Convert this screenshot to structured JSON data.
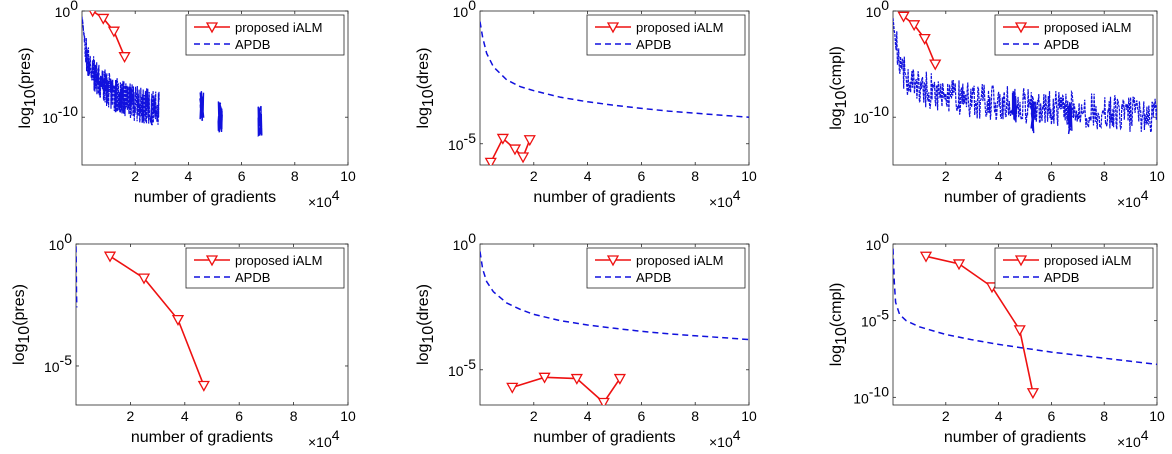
{
  "chart_data": [
    {
      "type": "line",
      "panel": "a",
      "xlabel": "number of gradients",
      "xmult": "×10",
      "xmult_exp": "4",
      "ylabel_prefix": "log",
      "ylabel_sub": "10",
      "ylabel_suffix": "(pres)",
      "xlim": [
        0,
        10
      ],
      "xticks": [
        "2",
        "4",
        "6",
        "8",
        "10"
      ],
      "ylim": [
        -14.5,
        0
      ],
      "yscale": "log",
      "yticks": [
        {
          "exp": 0,
          "label": "10",
          "sup": "0"
        },
        {
          "exp": -10,
          "label": "10",
          "sup": "-10"
        }
      ],
      "legend": {
        "position": "top-right",
        "entries": [
          "proposed iALM",
          "APDB"
        ]
      },
      "series": [
        {
          "name": "proposed iALM",
          "color": "#ee1111",
          "style": "solid",
          "marker": "triangle-down",
          "x": [
            0.4,
            0.8,
            1.2,
            1.6
          ],
          "y": [
            0,
            -0.7,
            -1.9,
            -4.3
          ]
        },
        {
          "name": "APDB",
          "color": "#1111dd",
          "style": "noisy",
          "noise": "pres",
          "x": [
            0.0,
            0.05,
            0.2,
            0.5,
            1.0,
            1.5,
            2.0,
            2.5,
            2.9
          ],
          "y": [
            -0.3,
            -2.0,
            -4.5,
            -6.2,
            -7.5,
            -8.2,
            -8.7,
            -9.0,
            -9.2
          ],
          "clusters": [
            {
              "x": 4.5,
              "y": -9.0
            },
            {
              "x": 5.2,
              "y": -10.0
            },
            {
              "x": 6.7,
              "y": -10.3
            }
          ]
        }
      ]
    },
    {
      "type": "line",
      "panel": "b",
      "xlabel": "number of gradients",
      "xmult": "×10",
      "xmult_exp": "4",
      "ylabel_prefix": "log",
      "ylabel_sub": "10",
      "ylabel_suffix": "(dres)",
      "xlim": [
        0,
        10
      ],
      "xticks": [
        "2",
        "4",
        "6",
        "8",
        "10"
      ],
      "ylim": [
        -5.8,
        0
      ],
      "yscale": "log",
      "yticks": [
        {
          "exp": 0,
          "label": "10",
          "sup": "0"
        },
        {
          "exp": -5,
          "label": "10",
          "sup": "-5"
        }
      ],
      "legend": {
        "position": "top-right",
        "entries": [
          "proposed iALM",
          "APDB"
        ]
      },
      "series": [
        {
          "name": "proposed iALM",
          "color": "#ee1111",
          "style": "solid",
          "marker": "triangle-down",
          "x": [
            0.4,
            0.85,
            1.3,
            1.6,
            1.85
          ],
          "y": [
            -5.7,
            -4.8,
            -5.2,
            -5.5,
            -4.85
          ]
        },
        {
          "name": "APDB",
          "color": "#1111dd",
          "style": "dashed",
          "x": [
            0.0,
            0.1,
            0.25,
            0.5,
            1.0,
            1.5,
            2.0,
            3.0,
            4.0,
            5.0,
            6.0,
            7.0,
            8.0,
            9.0,
            10.0
          ],
          "y": [
            -0.4,
            -1.0,
            -1.6,
            -2.1,
            -2.6,
            -2.85,
            -3.0,
            -3.25,
            -3.42,
            -3.55,
            -3.67,
            -3.77,
            -3.85,
            -3.93,
            -4.0
          ]
        }
      ]
    },
    {
      "type": "line",
      "panel": "c",
      "xlabel": "number of gradients",
      "xmult": "×10",
      "xmult_exp": "4",
      "ylabel_prefix": "log",
      "ylabel_sub": "10",
      "ylabel_suffix": "(cmpl)",
      "xlim": [
        0,
        10
      ],
      "xticks": [
        "2",
        "4",
        "6",
        "8",
        "10"
      ],
      "ylim": [
        -14.5,
        0
      ],
      "yscale": "log",
      "yticks": [
        {
          "exp": 0,
          "label": "10",
          "sup": "0"
        },
        {
          "exp": -10,
          "label": "10",
          "sup": "-10"
        }
      ],
      "legend": {
        "position": "top-right",
        "entries": [
          "proposed iALM",
          "APDB"
        ]
      },
      "series": [
        {
          "name": "proposed iALM",
          "color": "#ee1111",
          "style": "solid",
          "marker": "triangle-down",
          "x": [
            0.4,
            0.8,
            1.2,
            1.6
          ],
          "y": [
            -0.5,
            -1.3,
            -2.6,
            -5.0
          ]
        },
        {
          "name": "APDB",
          "color": "#1111dd",
          "style": "noisy",
          "noise": "cmpl",
          "x": [
            0.0,
            0.05,
            0.2,
            0.5,
            1.0,
            1.5,
            2.0,
            3.0,
            4.0,
            5.0,
            6.0,
            7.0,
            8.0,
            9.0,
            10.0
          ],
          "y": [
            -0.3,
            -2.0,
            -4.5,
            -6.2,
            -7.2,
            -7.6,
            -8.0,
            -8.4,
            -8.7,
            -8.9,
            -9.1,
            -9.3,
            -9.5,
            -9.7,
            -9.9
          ],
          "clusters": [
            {
              "x": 4.6,
              "y": -9.0
            },
            {
              "x": 5.3,
              "y": -10.0
            },
            {
              "x": 6.7,
              "y": -10.3
            }
          ]
        }
      ]
    },
    {
      "type": "line",
      "panel": "d",
      "xlabel": "number of gradients",
      "xmult": "×10",
      "xmult_exp": "4",
      "ylabel_prefix": "log",
      "ylabel_sub": "10",
      "ylabel_suffix": "(pres)",
      "xlim": [
        0,
        10
      ],
      "xticks": [
        "2",
        "4",
        "6",
        "8",
        "10"
      ],
      "ylim": [
        -6.6,
        0
      ],
      "yscale": "log",
      "yticks": [
        {
          "exp": 0,
          "label": "10",
          "sup": "0"
        },
        {
          "exp": -5,
          "label": "10",
          "sup": "-5"
        }
      ],
      "legend": {
        "position": "top-right",
        "entries": [
          "proposed iALM",
          "APDB"
        ]
      },
      "series": [
        {
          "name": "proposed iALM",
          "color": "#ee1111",
          "style": "solid",
          "marker": "triangle-down",
          "x": [
            1.25,
            2.5,
            3.75,
            4.7
          ],
          "y": [
            -0.5,
            -1.4,
            -3.1,
            -5.8
          ]
        },
        {
          "name": "APDB",
          "color": "#1111dd",
          "style": "dashed",
          "x": [
            0.0,
            0.01,
            0.02,
            0.03
          ],
          "y": [
            -0.1,
            -1.0,
            -2.0,
            -2.6
          ]
        }
      ]
    },
    {
      "type": "line",
      "panel": "e",
      "xlabel": "number of gradients",
      "xmult": "×10",
      "xmult_exp": "4",
      "ylabel_prefix": "log",
      "ylabel_sub": "10",
      "ylabel_suffix": "(dres)",
      "xlim": [
        0,
        10
      ],
      "xticks": [
        "2",
        "4",
        "6",
        "8",
        "10"
      ],
      "ylim": [
        -6.4,
        0
      ],
      "yscale": "log",
      "yticks": [
        {
          "exp": 0,
          "label": "10",
          "sup": "0"
        },
        {
          "exp": -5,
          "label": "10",
          "sup": "-5"
        }
      ],
      "legend": {
        "position": "top-right",
        "entries": [
          "proposed iALM",
          "APDB"
        ]
      },
      "series": [
        {
          "name": "proposed iALM",
          "color": "#ee1111",
          "style": "solid",
          "marker": "triangle-down",
          "x": [
            1.2,
            2.4,
            3.6,
            4.6,
            5.2
          ],
          "y": [
            -5.7,
            -5.3,
            -5.35,
            -6.3,
            -5.35
          ]
        },
        {
          "name": "APDB",
          "color": "#1111dd",
          "style": "dashed",
          "x": [
            0.0,
            0.1,
            0.25,
            0.5,
            1.0,
            1.5,
            2.0,
            3.0,
            4.0,
            5.0,
            6.0,
            7.0,
            8.0,
            9.0,
            10.0
          ],
          "y": [
            -0.3,
            -1.0,
            -1.5,
            -1.9,
            -2.35,
            -2.6,
            -2.8,
            -3.05,
            -3.22,
            -3.35,
            -3.47,
            -3.57,
            -3.65,
            -3.72,
            -3.8
          ]
        }
      ]
    },
    {
      "type": "line",
      "panel": "f",
      "xlabel": "number of gradients",
      "xmult": "×10",
      "xmult_exp": "4",
      "ylabel_prefix": "log",
      "ylabel_sub": "10",
      "ylabel_suffix": "(cmpl)",
      "xlim": [
        0,
        10
      ],
      "xticks": [
        "2",
        "4",
        "6",
        "8",
        "10"
      ],
      "ylim": [
        -10.5,
        0
      ],
      "yscale": "log",
      "yticks": [
        {
          "exp": 0,
          "label": "10",
          "sup": "0"
        },
        {
          "exp": -5,
          "label": "10",
          "sup": "-5"
        },
        {
          "exp": -10,
          "label": "10",
          "sup": "-10"
        }
      ],
      "legend": {
        "position": "top-right",
        "entries": [
          "proposed iALM",
          "APDB"
        ]
      },
      "series": [
        {
          "name": "proposed iALM",
          "color": "#ee1111",
          "style": "solid",
          "marker": "triangle-down",
          "x": [
            1.25,
            2.5,
            3.75,
            4.8,
            5.3
          ],
          "y": [
            -0.8,
            -1.3,
            -2.8,
            -5.6,
            -9.7
          ]
        },
        {
          "name": "APDB",
          "color": "#1111dd",
          "style": "dashed",
          "x": [
            0.0,
            0.05,
            0.1,
            0.25,
            0.5,
            1.0,
            2.0,
            3.0,
            4.0,
            5.0,
            6.0,
            7.0,
            8.0,
            9.0,
            10.0
          ],
          "y": [
            -0.3,
            -2.5,
            -3.8,
            -4.6,
            -5.0,
            -5.4,
            -5.9,
            -6.25,
            -6.55,
            -6.8,
            -7.05,
            -7.25,
            -7.45,
            -7.65,
            -7.85
          ]
        }
      ]
    }
  ]
}
